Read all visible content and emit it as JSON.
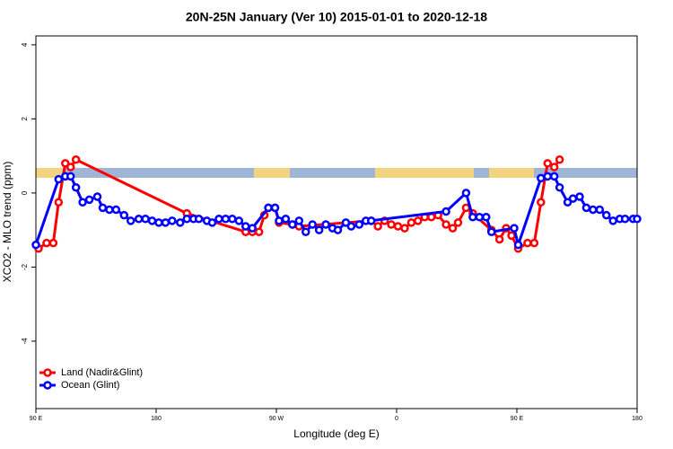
{
  "chart_data": {
    "type": "line",
    "title": "20N-25N January (Ver 10)   2015-01-01 to 2020-12-18",
    "x_label": "Longitude (deg E)",
    "y_label": "XCO2 - MLO trend (ppm)",
    "xlim": [
      90,
      540
    ],
    "xticks": [
      {
        "value": 90,
        "label": "90 E"
      },
      {
        "value": 180,
        "label": "180"
      },
      {
        "value": 270,
        "label": "90 W"
      },
      {
        "value": 360,
        "label": "0"
      },
      {
        "value": 450,
        "label": "90 E"
      },
      {
        "value": 540,
        "label": "180"
      }
    ],
    "ylim": [
      -5.82,
      4.24
    ],
    "yticks": [
      -4,
      -2,
      0,
      2,
      4
    ],
    "legend": "bottomleft",
    "series": [
      {
        "name": "Land (Nadir&Glint)",
        "color": "#ff0000",
        "x": [
          92,
          98,
          103,
          107,
          112,
          116,
          120,
          203,
          247,
          252,
          257,
          261,
          264,
          269,
          272,
          282,
          287,
          341,
          346,
          351,
          356,
          361,
          366,
          371,
          376,
          381,
          386,
          391,
          397,
          402,
          406,
          412,
          417,
          431,
          437,
          442,
          446,
          451,
          458,
          463,
          468,
          473,
          478,
          482
        ],
        "values": [
          -1.5,
          -1.35,
          -1.35,
          -0.25,
          0.8,
          0.7,
          0.9,
          -0.55,
          -1.05,
          -1.05,
          -1.05,
          -0.6,
          -0.4,
          -0.4,
          -0.8,
          -0.85,
          -0.9,
          -0.75,
          -0.9,
          -0.75,
          -0.85,
          -0.9,
          -0.95,
          -0.8,
          -0.75,
          -0.65,
          -0.65,
          -0.6,
          -0.85,
          -0.95,
          -0.8,
          -0.4,
          -0.55,
          -1.0,
          -1.25,
          -0.95,
          -1.15,
          -1.5,
          -1.35,
          -1.35,
          -0.25,
          0.8,
          0.7,
          0.9
        ]
      },
      {
        "name": "Ocean (Glint)",
        "color": "#0000ff",
        "x": [
          90,
          107,
          112,
          116,
          120,
          125,
          130,
          136,
          140,
          145,
          150,
          156,
          161,
          167,
          172,
          177,
          182,
          187,
          192,
          198,
          203,
          208,
          212,
          218,
          222,
          227,
          232,
          237,
          242,
          247,
          252,
          264,
          269,
          272,
          277,
          282,
          287,
          292,
          297,
          302,
          307,
          312,
          316,
          322,
          326,
          332,
          337,
          341,
          397,
          412,
          417,
          422,
          427,
          431,
          448,
          451,
          468,
          473,
          478,
          482,
          488,
          492,
          497,
          502,
          507,
          512,
          517,
          522,
          527,
          531,
          537,
          540
        ],
        "values": [
          -1.4,
          0.37,
          0.45,
          0.45,
          0.15,
          -0.25,
          -0.18,
          -0.1,
          -0.4,
          -0.45,
          -0.45,
          -0.6,
          -0.75,
          -0.7,
          -0.7,
          -0.75,
          -0.8,
          -0.8,
          -0.75,
          -0.8,
          -0.7,
          -0.7,
          -0.7,
          -0.75,
          -0.8,
          -0.7,
          -0.7,
          -0.7,
          -0.75,
          -0.9,
          -0.95,
          -0.4,
          -0.4,
          -0.75,
          -0.7,
          -0.85,
          -0.75,
          -1.05,
          -0.85,
          -1.0,
          -0.85,
          -0.95,
          -1.0,
          -0.8,
          -0.9,
          -0.85,
          -0.75,
          -0.75,
          -0.5,
          0.0,
          -0.65,
          -0.65,
          -0.65,
          -1.05,
          -0.95,
          -1.4,
          0.4,
          0.45,
          0.45,
          0.15,
          -0.25,
          -0.15,
          -0.1,
          -0.4,
          -0.45,
          -0.45,
          -0.6,
          -0.75,
          -0.7,
          -0.7,
          -0.7,
          -0.7
        ]
      }
    ]
  }
}
